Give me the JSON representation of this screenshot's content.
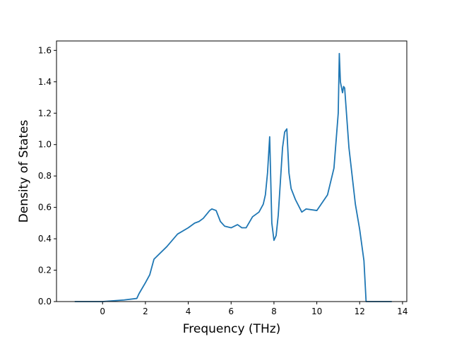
{
  "chart_data": {
    "type": "line",
    "title": "",
    "xlabel": "Frequency (THz)",
    "ylabel": "Density of States",
    "xlim": [
      -2.15,
      14.2
    ],
    "ylim": [
      0,
      1.66
    ],
    "xticks": [
      0,
      2,
      4,
      6,
      8,
      10,
      12,
      14
    ],
    "yticks": [
      0.0,
      0.2,
      0.4,
      0.6,
      0.8,
      1.0,
      1.2,
      1.4,
      1.6
    ],
    "xtick_labels": [
      "0",
      "2",
      "4",
      "6",
      "8",
      "10",
      "12",
      "14"
    ],
    "ytick_labels": [
      "0.0",
      "0.2",
      "0.4",
      "0.6",
      "0.8",
      "1.0",
      "1.2",
      "1.4",
      "1.6"
    ],
    "grid": false,
    "series": [
      {
        "color": "#1f77b4",
        "x": [
          -1.3,
          0.0,
          1.0,
          1.6,
          1.7,
          2.0,
          2.2,
          2.4,
          3.0,
          3.5,
          4.0,
          4.3,
          4.5,
          4.7,
          5.0,
          5.1,
          5.3,
          5.5,
          5.7,
          6.0,
          6.3,
          6.5,
          6.7,
          7.0,
          7.3,
          7.5,
          7.6,
          7.7,
          7.8,
          7.9,
          8.0,
          8.1,
          8.2,
          8.4,
          8.5,
          8.6,
          8.7,
          8.8,
          9.0,
          9.3,
          9.5,
          10.0,
          10.5,
          10.8,
          11.0,
          11.05,
          11.1,
          11.2,
          11.25,
          11.3,
          11.5,
          11.8,
          12.0,
          12.2,
          12.3,
          13.5
        ],
        "y": [
          0.0,
          0.0,
          0.01,
          0.02,
          0.05,
          0.12,
          0.17,
          0.27,
          0.35,
          0.43,
          0.47,
          0.5,
          0.51,
          0.53,
          0.58,
          0.59,
          0.58,
          0.51,
          0.48,
          0.47,
          0.49,
          0.47,
          0.47,
          0.54,
          0.57,
          0.62,
          0.68,
          0.82,
          1.05,
          0.5,
          0.39,
          0.42,
          0.55,
          0.98,
          1.08,
          1.1,
          0.82,
          0.72,
          0.65,
          0.57,
          0.59,
          0.58,
          0.68,
          0.85,
          1.2,
          1.58,
          1.4,
          1.33,
          1.37,
          1.36,
          0.98,
          0.62,
          0.46,
          0.26,
          0.0,
          0.0
        ]
      }
    ]
  }
}
